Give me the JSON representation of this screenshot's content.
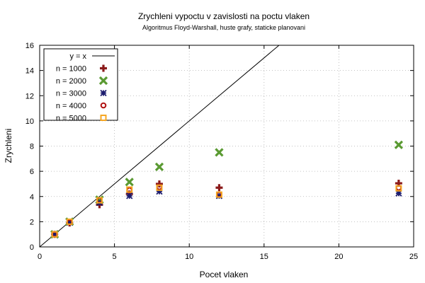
{
  "chart_data": {
    "type": "scatter",
    "title": "Zrychleni vypoctu v zavislosti na poctu vlaken",
    "subtitle": "Algoritmus Floyd-Warshall, huste grafy, staticke planovani",
    "xlabel": "Pocet vlaken",
    "ylabel": "Zrychleni",
    "xlim": [
      0,
      25
    ],
    "ylim": [
      0,
      16
    ],
    "x_ticks": [
      "0",
      "5",
      "10",
      "15",
      "20",
      "25"
    ],
    "y_ticks": [
      "0",
      "2",
      "4",
      "6",
      "8",
      "10",
      "12",
      "14",
      "16"
    ],
    "grid": true,
    "legend_position": "top-left",
    "reference_line": {
      "name": "y = x",
      "color": "#000000"
    },
    "series": [
      {
        "name": "n = 1000",
        "marker": "plus",
        "color": "#8b1a1a",
        "points": [
          [
            1,
            1.0
          ],
          [
            2,
            1.9
          ],
          [
            4,
            3.35
          ],
          [
            6,
            4.2
          ],
          [
            8,
            5.0
          ],
          [
            12,
            4.7
          ],
          [
            24,
            5.05
          ]
        ]
      },
      {
        "name": "n = 2000",
        "marker": "cross",
        "color": "#5a9a32",
        "points": [
          [
            1,
            1.0
          ],
          [
            2,
            2.0
          ],
          [
            4,
            3.75
          ],
          [
            6,
            5.15
          ],
          [
            8,
            6.35
          ],
          [
            12,
            7.5
          ],
          [
            24,
            8.1
          ]
        ]
      },
      {
        "name": "n = 3000",
        "marker": "star",
        "color": "#1c1c6e",
        "points": [
          [
            1,
            1.0
          ],
          [
            2,
            1.95
          ],
          [
            4,
            3.5
          ],
          [
            6,
            4.05
          ],
          [
            8,
            4.4
          ],
          [
            12,
            4.05
          ],
          [
            24,
            4.25
          ]
        ]
      },
      {
        "name": "n = 4000",
        "marker": "circle",
        "color": "#b01010",
        "points": [
          [
            1,
            1.0
          ],
          [
            2,
            1.95
          ],
          [
            4,
            3.7
          ],
          [
            6,
            4.5
          ],
          [
            8,
            4.75
          ],
          [
            12,
            4.15
          ],
          [
            24,
            4.7
          ]
        ]
      },
      {
        "name": "n = 5000",
        "marker": "square",
        "color": "#f5a623",
        "points": [
          [
            1,
            1.0
          ],
          [
            2,
            2.0
          ],
          [
            4,
            3.7
          ],
          [
            6,
            4.55
          ],
          [
            8,
            4.7
          ],
          [
            12,
            4.15
          ],
          [
            24,
            4.65
          ]
        ]
      }
    ]
  }
}
